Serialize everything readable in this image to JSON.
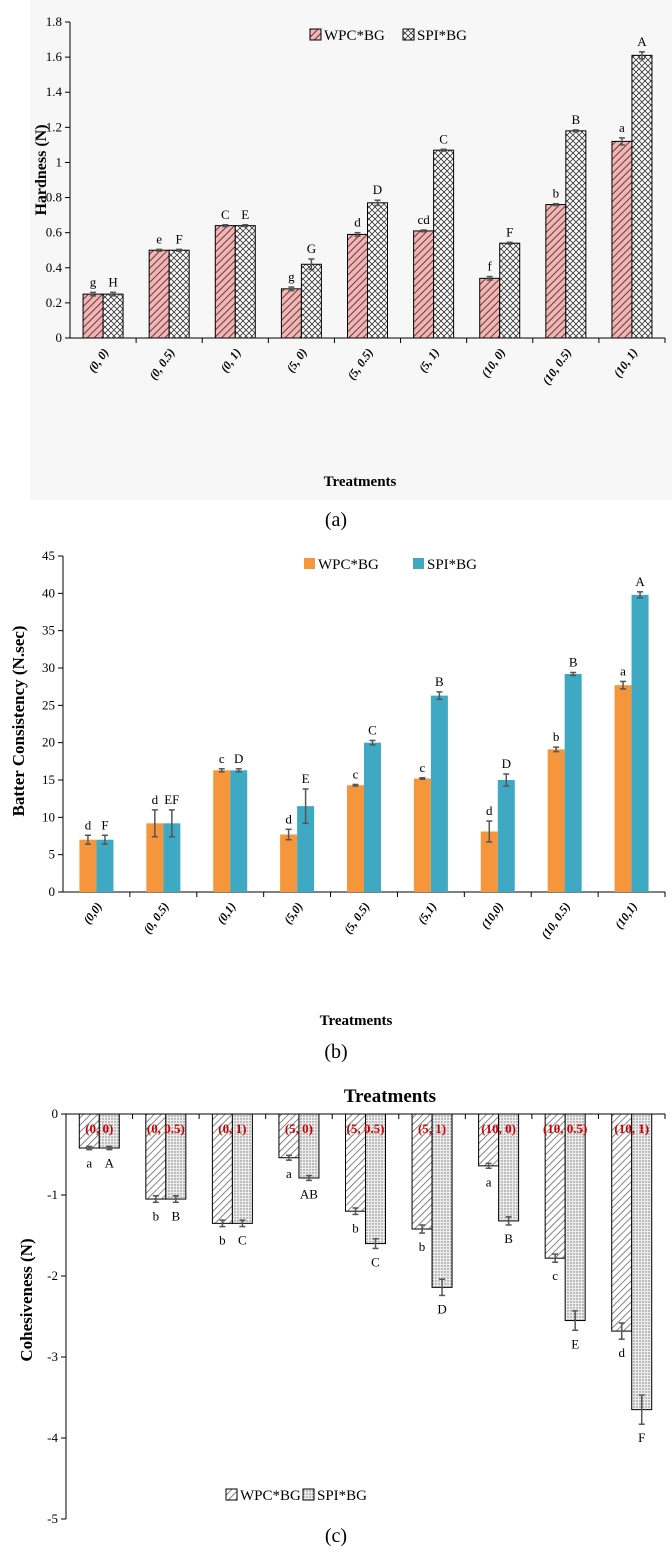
{
  "chart_data": [
    {
      "type": "bar",
      "ylabel": "Hardness (N)",
      "xlabel": "Treatments",
      "panel_label": "(a)",
      "ylim": [
        0,
        1.8
      ],
      "yticks": [
        "0",
        "0.2",
        "0.4",
        "0.6",
        "0.8",
        "1",
        "1.2",
        "1.4",
        "1.6",
        "1.8"
      ],
      "categories": [
        "(0, 0)",
        "(0, 0.5)",
        "(0, 1)",
        "(5, 0)",
        "(5, 0.5)",
        "(5, 1)",
        "(10, 0)",
        "(10, 0.5)",
        "(10, 1)"
      ],
      "legend_position": "top",
      "series": [
        {
          "name": "WPC*BG",
          "color": "#d9a3a3",
          "pattern": "diagonal-stripes",
          "values": [
            0.25,
            0.5,
            0.64,
            0.28,
            0.59,
            0.61,
            0.34,
            0.76,
            1.12
          ],
          "errors": [
            0.01,
            0.005,
            0.005,
            0.01,
            0.01,
            0.005,
            0.01,
            0.005,
            0.02
          ],
          "letters": [
            "g",
            "e",
            "C",
            "g",
            "d",
            "cd",
            "f",
            "b",
            "a"
          ]
        },
        {
          "name": "SPI*BG",
          "color": "#ffffff",
          "pattern": "crosshatch",
          "values": [
            0.25,
            0.5,
            0.64,
            0.42,
            0.77,
            1.07,
            0.54,
            1.18,
            1.61
          ],
          "errors": [
            0.01,
            0.005,
            0.005,
            0.03,
            0.015,
            0.005,
            0.005,
            0.005,
            0.02
          ],
          "letters": [
            "H",
            "F",
            "E",
            "G",
            "D",
            "C",
            "F",
            "B",
            "A"
          ]
        }
      ]
    },
    {
      "type": "bar",
      "ylabel": "Batter Consistency (N.sec)",
      "xlabel": "Treatments",
      "panel_label": "(b)",
      "ylim": [
        0,
        45
      ],
      "yticks": [
        "0",
        "5",
        "10",
        "15",
        "20",
        "25",
        "30",
        "35",
        "40",
        "45"
      ],
      "categories": [
        "(0,0)",
        "(0, 0.5)",
        "(0,1)",
        "(5,0)",
        "(5, 0.5)",
        "(5,1)",
        "(10,0)",
        "(10, 0.5)",
        "(10,1)"
      ],
      "legend_position": "top",
      "series": [
        {
          "name": "WPC*BG",
          "color": "#f5963c",
          "values": [
            7.0,
            9.2,
            16.3,
            7.7,
            14.3,
            15.2,
            8.1,
            19.1,
            27.7
          ],
          "errors": [
            0.6,
            1.8,
            0.2,
            0.7,
            0.1,
            0.1,
            1.4,
            0.3,
            0.5
          ],
          "letters": [
            "d",
            "d",
            "c",
            "d",
            "c",
            "c",
            "d",
            "b",
            "a"
          ]
        },
        {
          "name": "SPI*BG",
          "color": "#3fa9c4",
          "values": [
            7.0,
            9.2,
            16.3,
            11.5,
            20.0,
            26.3,
            15.0,
            29.2,
            39.8
          ],
          "errors": [
            0.6,
            1.8,
            0.2,
            2.3,
            0.3,
            0.5,
            0.8,
            0.2,
            0.4
          ],
          "letters": [
            "F",
            "EF",
            "D",
            "E",
            "C",
            "B",
            "D",
            "B",
            "A"
          ]
        }
      ]
    },
    {
      "type": "bar",
      "ylabel": "Cohesiveness (N)",
      "title": "Treatments",
      "panel_label": "(c)",
      "ylim": [
        -5,
        0
      ],
      "yticks": [
        "0",
        "-1",
        "-2",
        "-3",
        "-4",
        "-5"
      ],
      "categories": [
        "(0, 0)",
        "(0, 0.5)",
        "(0, 1)",
        "(5, 0)",
        "(5, 0.5)",
        "(5, 1)",
        "(10, 0)",
        "(10, 0.5)",
        "(10, 1)"
      ],
      "legend_position": "bottom",
      "series": [
        {
          "name": "WPC*BG",
          "color": "#ffffff",
          "pattern": "diagonal-stripes",
          "values": [
            -0.42,
            -1.05,
            -1.35,
            -0.54,
            -1.2,
            -1.42,
            -0.64,
            -1.78,
            -2.68
          ],
          "errors": [
            0.02,
            0.04,
            0.04,
            0.03,
            0.04,
            0.05,
            0.03,
            0.05,
            0.1
          ],
          "letters": [
            "a",
            "b",
            "b",
            "a",
            "b",
            "b",
            "a",
            "c",
            "d"
          ]
        },
        {
          "name": "SPI*BG",
          "color": "#ffffff",
          "pattern": "dots",
          "values": [
            -0.42,
            -1.05,
            -1.35,
            -0.79,
            -1.6,
            -2.14,
            -1.32,
            -2.55,
            -3.65
          ],
          "errors": [
            0.02,
            0.04,
            0.04,
            0.03,
            0.06,
            0.1,
            0.05,
            0.12,
            0.18
          ],
          "letters": [
            "A",
            "B",
            "C",
            "AB",
            "C",
            "D",
            "B",
            "E",
            "F"
          ]
        }
      ]
    }
  ]
}
